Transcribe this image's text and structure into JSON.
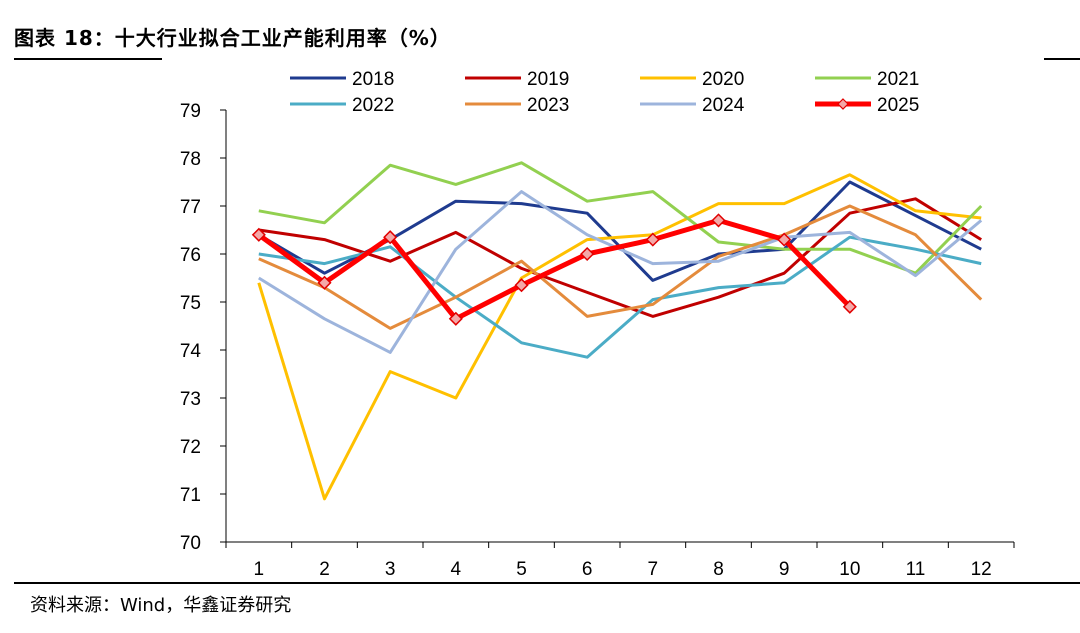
{
  "figure": {
    "title": "图表 18：十大行业拟合工业产能利用率（%）",
    "source": "资料来源：Wind，华鑫证券研究"
  },
  "chart_data": {
    "type": "line",
    "title": "十大行业拟合工业产能利用率（%）",
    "xlabel": "",
    "ylabel": "",
    "categories": [
      "1",
      "2",
      "3",
      "4",
      "5",
      "6",
      "7",
      "8",
      "9",
      "10",
      "11",
      "12"
    ],
    "yticks": [
      "70",
      "71",
      "72",
      "73",
      "74",
      "75",
      "76",
      "77",
      "78",
      "79"
    ],
    "ylim": [
      70,
      79
    ],
    "grid": false,
    "legend_position": "top",
    "series": [
      {
        "name": "2018",
        "color": "#1f3b8f",
        "values": [
          76.4,
          75.6,
          76.3,
          77.1,
          77.05,
          76.85,
          75.45,
          76.0,
          76.1,
          77.5,
          76.8,
          76.1
        ]
      },
      {
        "name": "2019",
        "color": "#c00000",
        "values": [
          76.5,
          76.3,
          75.85,
          76.45,
          75.7,
          75.2,
          74.7,
          75.1,
          75.6,
          76.85,
          77.15,
          76.3
        ]
      },
      {
        "name": "2020",
        "color": "#ffc000",
        "values": [
          75.4,
          70.9,
          73.55,
          73.0,
          75.5,
          76.3,
          76.4,
          77.05,
          77.05,
          77.65,
          76.9,
          76.75
        ]
      },
      {
        "name": "2021",
        "color": "#92d050",
        "values": [
          76.9,
          76.65,
          77.85,
          77.45,
          77.9,
          77.1,
          77.3,
          76.25,
          76.1,
          76.1,
          75.6,
          77.0
        ]
      },
      {
        "name": "2022",
        "color": "#4bacc6",
        "values": [
          76.0,
          75.8,
          76.15,
          75.1,
          74.15,
          73.85,
          75.05,
          75.3,
          75.4,
          76.35,
          76.1,
          75.8
        ]
      },
      {
        "name": "2023",
        "color": "#e48b3c",
        "values": [
          75.9,
          75.3,
          74.45,
          75.1,
          75.85,
          74.7,
          74.95,
          75.95,
          76.4,
          77.0,
          76.4,
          75.05
        ]
      },
      {
        "name": "2024",
        "color": "#9db4dc",
        "values": [
          75.5,
          74.65,
          73.95,
          76.1,
          77.3,
          76.4,
          75.8,
          75.85,
          76.35,
          76.45,
          75.55,
          76.7
        ]
      },
      {
        "name": "2025",
        "color": "#ff0000",
        "marker": "diamond",
        "values": [
          76.4,
          75.4,
          76.35,
          74.65,
          75.35,
          76.0,
          76.3,
          76.7,
          76.3,
          74.9,
          null,
          null
        ]
      }
    ]
  }
}
